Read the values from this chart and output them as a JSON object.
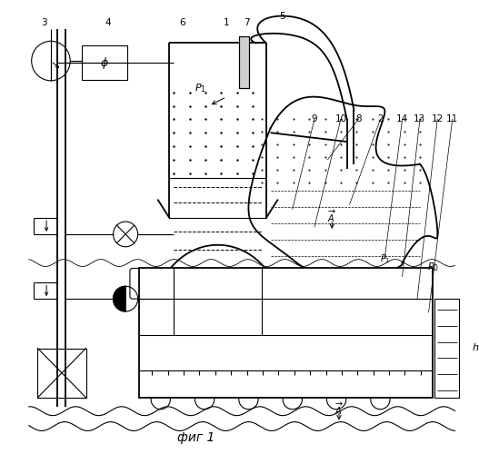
{
  "title": "фиг 1",
  "bg_color": "#ffffff",
  "line_color": "#000000",
  "fig_width": 5.27,
  "fig_height": 5.0,
  "dpi": 100
}
